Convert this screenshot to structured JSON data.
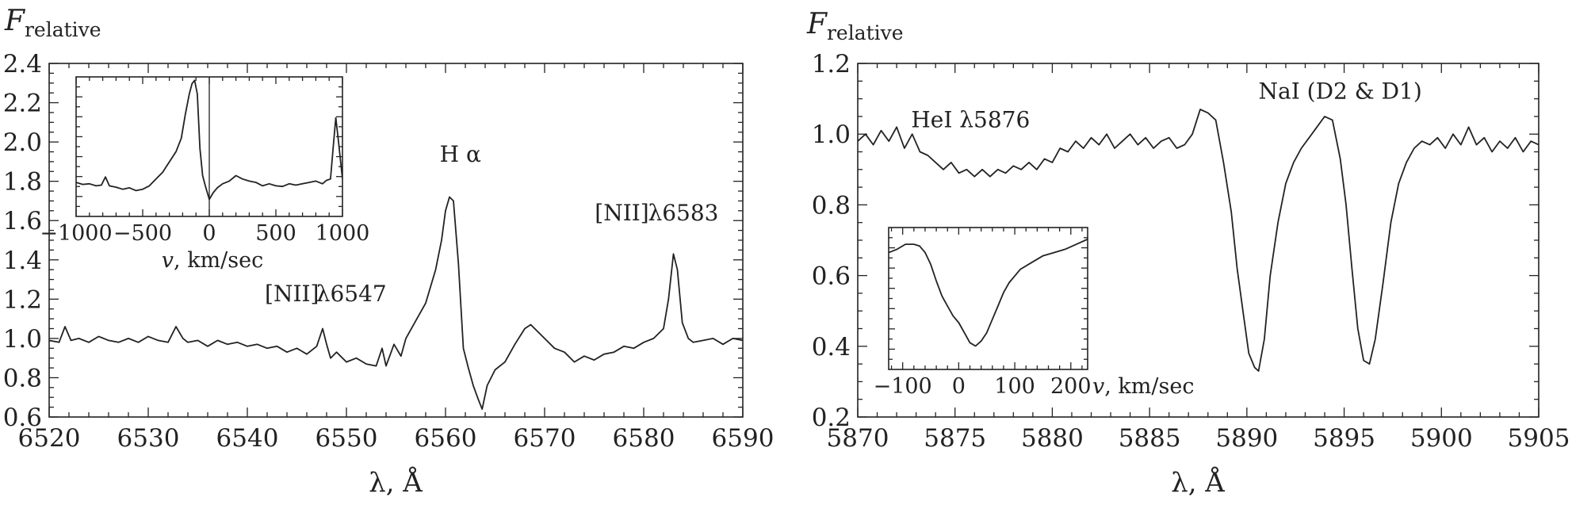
{
  "chart_data": [
    {
      "type": "line",
      "ylabel_main": "F",
      "ylabel_sub": "relative",
      "xlabel": "λ, Å",
      "xlim": [
        6520,
        6590
      ],
      "ylim": [
        0.6,
        2.4
      ],
      "xticks": [
        6520,
        6530,
        6540,
        6550,
        6560,
        6570,
        6580,
        6590
      ],
      "yticks": [
        0.6,
        0.8,
        1.0,
        1.2,
        1.4,
        1.6,
        1.8,
        2.0,
        2.2,
        2.4
      ],
      "xtick_labels": [
        "6520",
        "6530",
        "6540",
        "6550",
        "6560",
        "6570",
        "6580",
        "6590"
      ],
      "ytick_labels": [
        "0.6",
        "0.8",
        "1.0",
        "1.2",
        "1.4",
        "1.6",
        "1.8",
        "2.0",
        "2.2",
        "2.4"
      ],
      "annotations": [
        {
          "text": "H α",
          "x": 6561.5,
          "y": 1.9
        },
        {
          "text": "[NII]",
          "x": 6544.5,
          "y": 1.19
        },
        {
          "text": "λ6547",
          "x": 6550.5,
          "y": 1.19
        },
        {
          "text": "[NII]",
          "x": 6577.8,
          "y": 1.6
        },
        {
          "text": "λ6583",
          "x": 6584.0,
          "y": 1.6
        }
      ],
      "series": [
        {
          "name": "spectrum",
          "x": [
            6520,
            6521,
            6521.6,
            6522.2,
            6523,
            6524,
            6525,
            6526,
            6527,
            6528,
            6529,
            6530,
            6531,
            6532,
            6532.8,
            6533.5,
            6534,
            6535,
            6536,
            6537,
            6538,
            6539,
            6540,
            6541,
            6542,
            6543,
            6544,
            6545,
            6546,
            6547,
            6547.6,
            6548,
            6548.4,
            6549,
            6550,
            6551,
            6552,
            6553,
            6553.6,
            6554,
            6554.8,
            6555.5,
            6556,
            6557,
            6558,
            6559,
            6559.6,
            6560,
            6560.4,
            6560.8,
            6561.3,
            6561.8,
            6562.3,
            6562.8,
            6563.3,
            6563.7,
            6564.2,
            6565,
            6566,
            6567,
            6568,
            6568.6,
            6569.2,
            6570,
            6571,
            6572,
            6573,
            6574,
            6575,
            6576,
            6577,
            6578,
            6579,
            6580,
            6581,
            6582,
            6582.5,
            6583,
            6583.4,
            6583.9,
            6584.5,
            6585,
            6586,
            6587,
            6588,
            6589,
            6590
          ],
          "y": [
            0.99,
            0.98,
            1.06,
            0.99,
            1.0,
            0.98,
            1.01,
            0.99,
            0.98,
            1.0,
            0.98,
            1.01,
            0.99,
            0.98,
            1.06,
            1.0,
            0.98,
            0.99,
            0.96,
            0.99,
            0.97,
            0.98,
            0.96,
            0.97,
            0.95,
            0.96,
            0.93,
            0.95,
            0.92,
            0.96,
            1.05,
            0.97,
            0.9,
            0.93,
            0.88,
            0.9,
            0.87,
            0.86,
            0.95,
            0.86,
            0.97,
            0.91,
            1.0,
            1.09,
            1.18,
            1.35,
            1.5,
            1.65,
            1.72,
            1.7,
            1.38,
            0.95,
            0.85,
            0.76,
            0.69,
            0.64,
            0.76,
            0.84,
            0.88,
            0.97,
            1.05,
            1.07,
            1.04,
            1.0,
            0.95,
            0.93,
            0.88,
            0.91,
            0.89,
            0.92,
            0.93,
            0.96,
            0.95,
            0.98,
            1.0,
            1.05,
            1.2,
            1.43,
            1.35,
            1.08,
            1.0,
            0.98,
            0.99,
            1.0,
            0.97,
            1.0,
            0.99
          ]
        }
      ],
      "inset": {
        "type": "line",
        "xlabel": "v, km/sec",
        "xlim": [
          -1000,
          1000
        ],
        "ylim": [
          0.5,
          2.55
        ],
        "xticks": [
          -1000,
          -500,
          0,
          500,
          1000
        ],
        "xtick_labels": [
          "−1000",
          "−500",
          "0",
          "500",
          "1000"
        ],
        "vline_x": 0,
        "series": [
          {
            "name": "Hα profile",
            "x": [
              -1000,
              -950,
              -900,
              -850,
              -810,
              -780,
              -750,
              -700,
              -650,
              -600,
              -550,
              -500,
              -450,
              -400,
              -350,
              -300,
              -250,
              -210,
              -180,
              -150,
              -130,
              -110,
              -90,
              -70,
              -50,
              -30,
              0,
              30,
              60,
              100,
              150,
              200,
              250,
              300,
              350,
              400,
              450,
              500,
              550,
              600,
              650,
              700,
              750,
              800,
              850,
              880,
              910,
              930,
              950,
              970,
              1000
            ],
            "y": [
              1.0,
              0.97,
              0.98,
              0.95,
              0.96,
              1.08,
              0.95,
              0.93,
              0.9,
              0.92,
              0.88,
              0.9,
              0.95,
              1.05,
              1.15,
              1.3,
              1.45,
              1.65,
              2.0,
              2.3,
              2.45,
              2.5,
              2.3,
              1.5,
              1.1,
              0.95,
              0.75,
              0.85,
              0.92,
              0.98,
              1.02,
              1.1,
              1.05,
              1.02,
              1.0,
              0.95,
              0.98,
              0.95,
              0.94,
              0.98,
              0.96,
              0.98,
              1.0,
              1.02,
              0.98,
              1.03,
              1.05,
              1.5,
              1.95,
              1.6,
              1.05
            ]
          }
        ]
      }
    },
    {
      "type": "line",
      "ylabel_main": "F",
      "ylabel_sub": "relative",
      "xlabel": "λ, Å",
      "xlim": [
        5870,
        5905
      ],
      "ylim": [
        0.2,
        1.2
      ],
      "xticks": [
        5870,
        5875,
        5880,
        5885,
        5890,
        5895,
        5900,
        5905
      ],
      "yticks": [
        0.2,
        0.4,
        0.6,
        0.8,
        1.0,
        1.2
      ],
      "xtick_labels": [
        "5870",
        "5875",
        "5880",
        "5885",
        "5890",
        "5895",
        "5900",
        "5905"
      ],
      "ytick_labels": [
        "0.2",
        "0.4",
        "0.6",
        "0.8",
        "1.0",
        "1.2"
      ],
      "annotations": [
        {
          "text": "HeI λ5876",
          "x": 5875.8,
          "y": 1.02
        },
        {
          "text": "NaI (D2 & D1)",
          "x": 5894.8,
          "y": 1.1
        }
      ],
      "series": [
        {
          "name": "spectrum",
          "x": [
            5870,
            5870.4,
            5870.8,
            5871.2,
            5871.6,
            5872,
            5872.4,
            5872.8,
            5873.2,
            5873.6,
            5874,
            5874.4,
            5874.8,
            5875.2,
            5875.6,
            5876,
            5876.4,
            5876.8,
            5877.2,
            5877.6,
            5878,
            5878.4,
            5878.8,
            5879.2,
            5879.6,
            5880,
            5880.4,
            5880.8,
            5881.2,
            5881.6,
            5882,
            5882.4,
            5882.8,
            5883.2,
            5883.6,
            5884,
            5884.4,
            5884.8,
            5885.2,
            5885.6,
            5886,
            5886.4,
            5886.8,
            5887.2,
            5887.6,
            5888,
            5888.4,
            5888.8,
            5889.2,
            5889.5,
            5889.8,
            5890.1,
            5890.4,
            5890.6,
            5890.9,
            5891.2,
            5891.6,
            5892,
            5892.4,
            5892.8,
            5893.2,
            5893.6,
            5894,
            5894.4,
            5894.8,
            5895.1,
            5895.4,
            5895.7,
            5896,
            5896.3,
            5896.6,
            5897,
            5897.4,
            5897.8,
            5898.2,
            5898.6,
            5899,
            5899.4,
            5899.8,
            5900.2,
            5900.6,
            5901,
            5901.4,
            5901.8,
            5902.2,
            5902.6,
            5903,
            5903.4,
            5903.8,
            5904.2,
            5904.6,
            5905
          ],
          "y": [
            0.98,
            1.0,
            0.97,
            1.01,
            0.98,
            1.02,
            0.96,
            1.0,
            0.95,
            0.94,
            0.92,
            0.9,
            0.92,
            0.89,
            0.9,
            0.88,
            0.9,
            0.88,
            0.9,
            0.89,
            0.91,
            0.9,
            0.92,
            0.9,
            0.93,
            0.92,
            0.96,
            0.95,
            0.98,
            0.96,
            0.99,
            0.97,
            1.0,
            0.96,
            0.98,
            1.0,
            0.97,
            0.99,
            0.96,
            0.98,
            0.99,
            0.96,
            0.97,
            1.0,
            1.07,
            1.06,
            1.04,
            0.92,
            0.78,
            0.62,
            0.5,
            0.38,
            0.34,
            0.33,
            0.42,
            0.6,
            0.75,
            0.86,
            0.92,
            0.96,
            0.99,
            1.02,
            1.05,
            1.04,
            0.93,
            0.8,
            0.62,
            0.45,
            0.36,
            0.35,
            0.42,
            0.58,
            0.75,
            0.86,
            0.92,
            0.96,
            0.98,
            0.97,
            0.99,
            0.96,
            1.0,
            0.97,
            1.02,
            0.97,
            0.99,
            0.95,
            0.98,
            0.96,
            0.99,
            0.95,
            0.98,
            0.97
          ]
        }
      ],
      "inset": {
        "type": "line",
        "xlabel": "v, km/sec",
        "xlim": [
          -125,
          230
        ],
        "ylim": [
          0.3,
          1.15
        ],
        "xticks": [
          -100,
          0,
          100,
          200
        ],
        "xtick_labels": [
          "−100",
          "0",
          "100",
          "200"
        ],
        "series": [
          {
            "name": "NaI profile",
            "x": [
              -125,
              -110,
              -95,
              -80,
              -70,
              -60,
              -50,
              -40,
              -30,
              -20,
              -10,
              0,
              10,
              20,
              30,
              40,
              50,
              60,
              70,
              80,
              90,
              100,
              110,
              130,
              150,
              170,
              190,
              210,
              230
            ],
            "y": [
              1.0,
              1.02,
              1.05,
              1.05,
              1.04,
              1.0,
              0.93,
              0.83,
              0.74,
              0.68,
              0.62,
              0.58,
              0.52,
              0.46,
              0.44,
              0.47,
              0.52,
              0.6,
              0.68,
              0.76,
              0.82,
              0.86,
              0.9,
              0.94,
              0.98,
              1.0,
              1.02,
              1.05,
              1.08
            ]
          }
        ]
      }
    }
  ]
}
